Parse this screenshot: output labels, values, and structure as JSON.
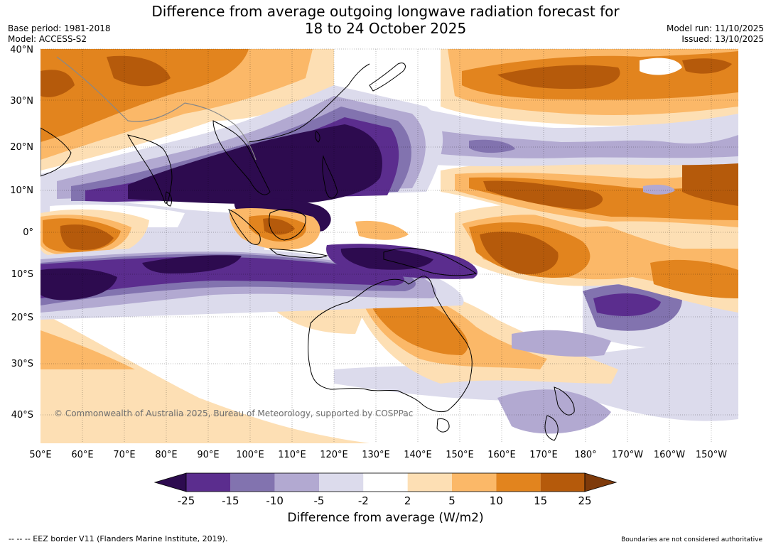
{
  "header": {
    "title_line1": "Difference from average outgoing longwave radiation forecast for",
    "title_line2": "18 to 24 October 2025",
    "base_period": "Base period: 1981-2018",
    "model": "Model: ACCESS-S2",
    "model_run": "Model run: 11/10/2025",
    "issued": "Issued: 13/10/2025"
  },
  "map": {
    "lon_ticks": [
      "50°E",
      "60°E",
      "70°E",
      "80°E",
      "90°E",
      "100°E",
      "110°E",
      "120°E",
      "130°E",
      "140°E",
      "150°E",
      "160°E",
      "170°E",
      "180°",
      "170°W",
      "160°W",
      "150°W"
    ],
    "lat_ticks": [
      "40°N",
      "30°N",
      "20°N",
      "10°N",
      "0°",
      "10°S",
      "20°S",
      "30°S",
      "40°S"
    ],
    "copyright": "© Commonwealth of Australia 2025, Bureau of Meteorology, supported by COSPPac"
  },
  "colorbar": {
    "labels": [
      "-25",
      "-15",
      "-10",
      "-5",
      "-2",
      "2",
      "5",
      "10",
      "15",
      "25"
    ],
    "colors": [
      "#2d0b4f",
      "#5b2d8e",
      "#8273af",
      "#b2a9d1",
      "#dcdbec",
      "#ffffff",
      "#fddfb4",
      "#fbb868",
      "#e2841e",
      "#b55a0b",
      "#7e3a0a"
    ],
    "title": "Difference from average (W/m2)"
  },
  "footer": {
    "eez_note": "--  --  -- EEZ border V11 (Flanders Marine Institute, 2019).",
    "boundaries_note": "Boundaries are not considered authoritative"
  }
}
